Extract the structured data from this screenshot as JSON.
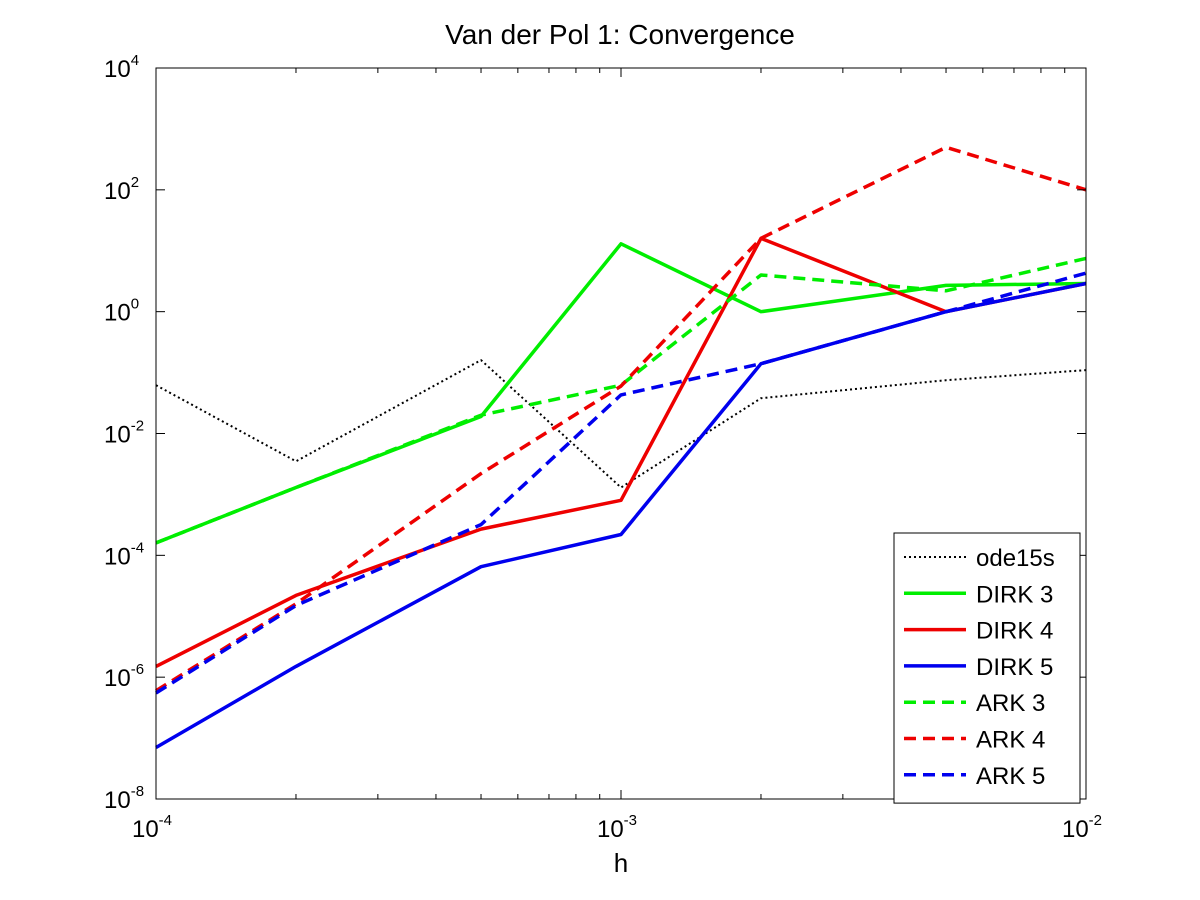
{
  "chart_data": {
    "type": "line",
    "title": "Van der Pol 1: Convergence",
    "xlabel": "h",
    "ylabel": "",
    "x_scale": "log",
    "y_scale": "log",
    "xlim": [
      0.0001,
      0.01
    ],
    "ylim": [
      1e-08,
      10000
    ],
    "x_ticks": [
      {
        "value": 0.0001,
        "base": "10",
        "exp": "-4"
      },
      {
        "value": 0.001,
        "base": "10",
        "exp": "-3"
      },
      {
        "value": 0.01,
        "base": "10",
        "exp": "-2"
      }
    ],
    "y_ticks": [
      {
        "value": 1e-08,
        "base": "10",
        "exp": "-8"
      },
      {
        "value": 1e-06,
        "base": "10",
        "exp": "-6"
      },
      {
        "value": 0.0001,
        "base": "10",
        "exp": "-4"
      },
      {
        "value": 0.01,
        "base": "10",
        "exp": "-2"
      },
      {
        "value": 1,
        "base": "10",
        "exp": "0"
      },
      {
        "value": 100,
        "base": "10",
        "exp": "2"
      },
      {
        "value": 10000,
        "base": "10",
        "exp": "4"
      }
    ],
    "x": [
      0.0001,
      0.0002,
      0.0005,
      0.001,
      0.002,
      0.005,
      0.01
    ],
    "grid": false,
    "legend_position": "bottom-right",
    "series": [
      {
        "name": "ode15s",
        "color": "#000000",
        "style": "dotted",
        "values": [
          0.062,
          0.0035,
          0.16,
          0.0013,
          0.038,
          0.075,
          0.11
        ]
      },
      {
        "name": "DIRK 3",
        "color": "#00ee00",
        "style": "solid",
        "values": [
          0.00016,
          0.0013,
          0.019,
          13,
          1.0,
          2.7,
          2.9
        ]
      },
      {
        "name": "DIRK 4",
        "color": "#ee0000",
        "style": "solid",
        "values": [
          1.5e-06,
          2.2e-05,
          0.00027,
          0.0008,
          16,
          1.0,
          2.9
        ]
      },
      {
        "name": "DIRK 5",
        "color": "#0000ee",
        "style": "solid",
        "values": [
          7e-08,
          1.5e-06,
          6.5e-05,
          0.00022,
          0.14,
          1.0,
          2.9
        ]
      },
      {
        "name": "ARK 3",
        "color": "#00ee00",
        "style": "dashed",
        "values": [
          0.00016,
          0.0013,
          0.02,
          0.062,
          4.0,
          2.2,
          7.5
        ]
      },
      {
        "name": "ARK 4",
        "color": "#ee0000",
        "style": "dashed",
        "values": [
          6e-07,
          1.6e-05,
          0.0022,
          0.06,
          16,
          500,
          100
        ]
      },
      {
        "name": "ARK 5",
        "color": "#0000ee",
        "style": "dashed",
        "values": [
          5.5e-07,
          1.5e-05,
          0.00032,
          0.043,
          0.14,
          1.0,
          4.3
        ]
      }
    ]
  }
}
